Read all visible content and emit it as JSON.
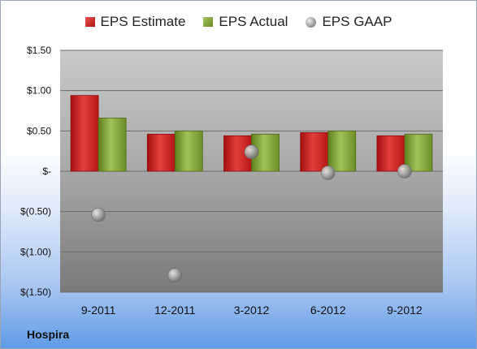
{
  "company_label": "Hospira",
  "colors": {
    "estimate": "#c62323",
    "actual": "#84a83a",
    "gaap": "#9a9a9a"
  },
  "chart_data": {
    "type": "bar",
    "categories": [
      "9-2011",
      "12-2011",
      "3-2012",
      "6-2012",
      "9-2012"
    ],
    "series": [
      {
        "name": "EPS Estimate",
        "kind": "bar",
        "values": [
          0.94,
          0.46,
          0.44,
          0.48,
          0.44
        ]
      },
      {
        "name": "EPS Actual",
        "kind": "bar",
        "values": [
          0.66,
          0.5,
          0.46,
          0.5,
          0.46
        ]
      },
      {
        "name": "EPS GAAP",
        "kind": "marker",
        "values": [
          -0.54,
          -1.29,
          0.24,
          -0.02,
          0.0
        ]
      }
    ],
    "ylim": [
      -1.5,
      1.5
    ],
    "yticks": [
      1.5,
      1.0,
      0.5,
      0,
      -0.5,
      -1.0,
      -1.5
    ],
    "ytick_labels": [
      "$1.50",
      "$1.00",
      "$0.50",
      "$-",
      "$(0.50)",
      "$(1.00)",
      "$(1.50)"
    ],
    "legend_position": "top",
    "grid": true
  }
}
